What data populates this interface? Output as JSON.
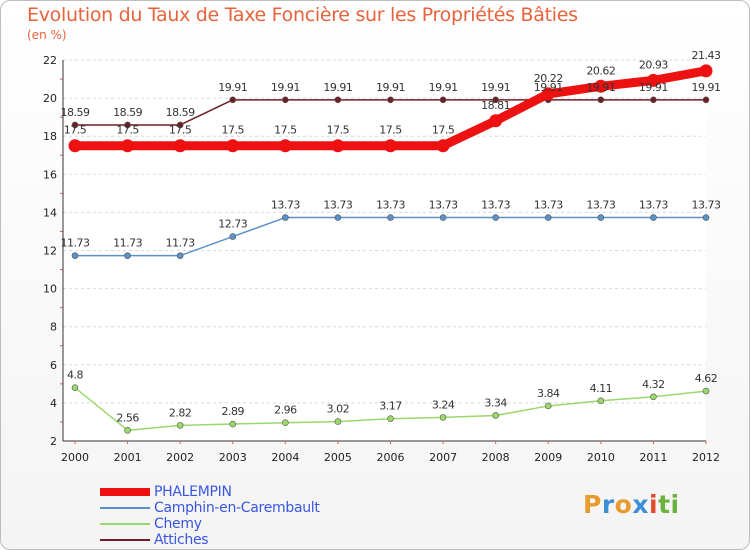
{
  "chart_data": {
    "type": "line",
    "title": "Evolution du Taux de Taxe Foncière sur les Propriétés Bâties",
    "ylabel": "(en %)",
    "xlabel": "",
    "ylim": [
      2,
      22
    ],
    "yticks": [
      "2",
      "4",
      "6",
      "8",
      "10",
      "12",
      "14",
      "16",
      "18",
      "20",
      "22"
    ],
    "ytick_values": [
      2,
      4,
      6,
      8,
      10,
      12,
      14,
      16,
      18,
      20,
      22
    ],
    "categories": [
      "2000",
      "2001",
      "2002",
      "2003",
      "2004",
      "2005",
      "2006",
      "2007",
      "2008",
      "2009",
      "2010",
      "2011",
      "2012"
    ],
    "series": [
      {
        "name": "Attiches",
        "color": "#6e1f24",
        "values": [
          18.59,
          18.59,
          18.59,
          19.91,
          19.91,
          19.91,
          19.91,
          19.91,
          19.91,
          19.91,
          19.91,
          19.91,
          19.91
        ],
        "labels": [
          "18.59",
          "18.59",
          "18.59",
          "19.91",
          "19.91",
          "19.91",
          "19.91",
          "19.91",
          "19.91",
          "19.91",
          "19.91",
          "19.91",
          "19.91"
        ]
      },
      {
        "name": "Camphin-en-Carembault",
        "color": "#5b92c9",
        "values": [
          11.73,
          11.73,
          11.73,
          12.73,
          13.73,
          13.73,
          13.73,
          13.73,
          13.73,
          13.73,
          13.73,
          13.73,
          13.73
        ],
        "labels": [
          "11.73",
          "11.73",
          "11.73",
          "12.73",
          "13.73",
          "13.73",
          "13.73",
          "13.73",
          "13.73",
          "13.73",
          "13.73",
          "13.73",
          "13.73"
        ]
      },
      {
        "name": "Chemy",
        "color": "#9ad86b",
        "values": [
          4.8,
          2.56,
          2.82,
          2.89,
          2.96,
          3.02,
          3.17,
          3.24,
          3.34,
          3.84,
          4.11,
          4.32,
          4.62
        ],
        "labels": [
          "4.8",
          "2.56",
          "2.82",
          "2.89",
          "2.96",
          "3.02",
          "3.17",
          "3.24",
          "3.34",
          "3.84",
          "4.11",
          "4.32",
          "4.62"
        ]
      },
      {
        "name": "PHALEMPIN",
        "color": "#ee1111",
        "values": [
          17.5,
          17.5,
          17.5,
          17.5,
          17.5,
          17.5,
          17.5,
          17.5,
          18.81,
          20.22,
          20.62,
          20.93,
          21.43
        ],
        "labels": [
          "17.5",
          "17.5",
          "17.5",
          "17.5",
          "17.5",
          "17.5",
          "17.5",
          "17.5",
          "18.81",
          "20.22",
          "20.62",
          "20.93",
          "21.43"
        ]
      }
    ],
    "legend": [
      "PHALEMPIN",
      "Camphin-en-Carembault",
      "Chemy",
      "Attiches"
    ],
    "legend_position": "bottom-left"
  },
  "logo": {
    "letters": [
      "P",
      "r",
      "o",
      "x",
      "i",
      "ti"
    ]
  }
}
